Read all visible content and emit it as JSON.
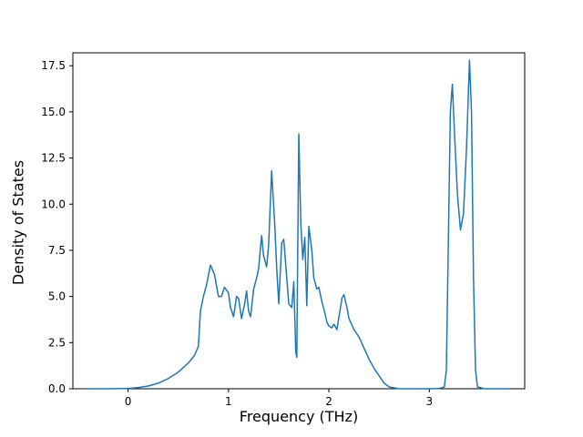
{
  "figure": {
    "background": "#ffffff"
  },
  "chart_data": {
    "type": "line",
    "title": "",
    "xlabel": "Frequency (THz)",
    "ylabel": "Density of States",
    "line_color": "#1f77b4",
    "line_width": 1.5,
    "axis_color": "#000000",
    "grid": false,
    "legend": null,
    "xlim": [
      -0.55,
      3.95
    ],
    "ylim": [
      0,
      18.2
    ],
    "xticks": [
      0,
      1,
      2,
      3
    ],
    "xtick_labels": [
      "0",
      "1",
      "2",
      "3"
    ],
    "yticks": [
      0,
      2.5,
      5,
      7.5,
      10,
      12.5,
      15,
      17.5
    ],
    "ytick_labels": [
      "0.0",
      "2.5",
      "5.0",
      "7.5",
      "10.0",
      "12.5",
      "15.0",
      "17.5"
    ],
    "points": [
      [
        -0.42,
        0.0
      ],
      [
        -0.2,
        0.0
      ],
      [
        0.0,
        0.02
      ],
      [
        0.1,
        0.06
      ],
      [
        0.2,
        0.15
      ],
      [
        0.3,
        0.3
      ],
      [
        0.4,
        0.55
      ],
      [
        0.5,
        0.9
      ],
      [
        0.6,
        1.4
      ],
      [
        0.66,
        1.8
      ],
      [
        0.7,
        2.3
      ],
      [
        0.72,
        4.2
      ],
      [
        0.75,
        5.0
      ],
      [
        0.78,
        5.6
      ],
      [
        0.82,
        6.7
      ],
      [
        0.86,
        6.2
      ],
      [
        0.9,
        5.0
      ],
      [
        0.93,
        5.0
      ],
      [
        0.96,
        5.5
      ],
      [
        1.0,
        5.2
      ],
      [
        1.02,
        4.4
      ],
      [
        1.05,
        3.9
      ],
      [
        1.08,
        5.0
      ],
      [
        1.1,
        4.9
      ],
      [
        1.13,
        3.8
      ],
      [
        1.16,
        4.6
      ],
      [
        1.18,
        5.3
      ],
      [
        1.2,
        4.2
      ],
      [
        1.22,
        3.9
      ],
      [
        1.25,
        5.4
      ],
      [
        1.28,
        6.0
      ],
      [
        1.3,
        6.5
      ],
      [
        1.33,
        8.3
      ],
      [
        1.35,
        7.2
      ],
      [
        1.38,
        6.6
      ],
      [
        1.4,
        7.8
      ],
      [
        1.43,
        11.8
      ],
      [
        1.46,
        9.0
      ],
      [
        1.48,
        6.5
      ],
      [
        1.5,
        4.6
      ],
      [
        1.53,
        7.9
      ],
      [
        1.55,
        8.1
      ],
      [
        1.58,
        6.0
      ],
      [
        1.6,
        4.6
      ],
      [
        1.63,
        4.4
      ],
      [
        1.65,
        5.8
      ],
      [
        1.67,
        2.0
      ],
      [
        1.68,
        1.7
      ],
      [
        1.7,
        13.8
      ],
      [
        1.72,
        9.0
      ],
      [
        1.74,
        7.0
      ],
      [
        1.76,
        8.2
      ],
      [
        1.78,
        4.5
      ],
      [
        1.8,
        8.8
      ],
      [
        1.83,
        7.5
      ],
      [
        1.85,
        6.0
      ],
      [
        1.88,
        5.4
      ],
      [
        1.9,
        5.5
      ],
      [
        1.93,
        4.7
      ],
      [
        1.95,
        4.3
      ],
      [
        1.98,
        3.6
      ],
      [
        2.0,
        3.4
      ],
      [
        2.03,
        3.3
      ],
      [
        2.05,
        3.5
      ],
      [
        2.08,
        3.2
      ],
      [
        2.1,
        3.9
      ],
      [
        2.13,
        4.9
      ],
      [
        2.15,
        5.1
      ],
      [
        2.18,
        4.4
      ],
      [
        2.2,
        3.8
      ],
      [
        2.25,
        3.2
      ],
      [
        2.3,
        2.8
      ],
      [
        2.35,
        2.2
      ],
      [
        2.4,
        1.6
      ],
      [
        2.45,
        1.1
      ],
      [
        2.5,
        0.7
      ],
      [
        2.55,
        0.3
      ],
      [
        2.6,
        0.1
      ],
      [
        2.7,
        0.0
      ],
      [
        3.0,
        0.0
      ],
      [
        3.1,
        0.02
      ],
      [
        3.15,
        0.1
      ],
      [
        3.17,
        1.0
      ],
      [
        3.19,
        8.0
      ],
      [
        3.21,
        15.0
      ],
      [
        3.23,
        16.5
      ],
      [
        3.25,
        14.0
      ],
      [
        3.28,
        10.5
      ],
      [
        3.31,
        8.6
      ],
      [
        3.34,
        9.5
      ],
      [
        3.37,
        13.0
      ],
      [
        3.4,
        17.8
      ],
      [
        3.42,
        15.0
      ],
      [
        3.44,
        6.0
      ],
      [
        3.46,
        1.0
      ],
      [
        3.48,
        0.1
      ],
      [
        3.55,
        0.0
      ],
      [
        3.8,
        0.0
      ]
    ]
  }
}
